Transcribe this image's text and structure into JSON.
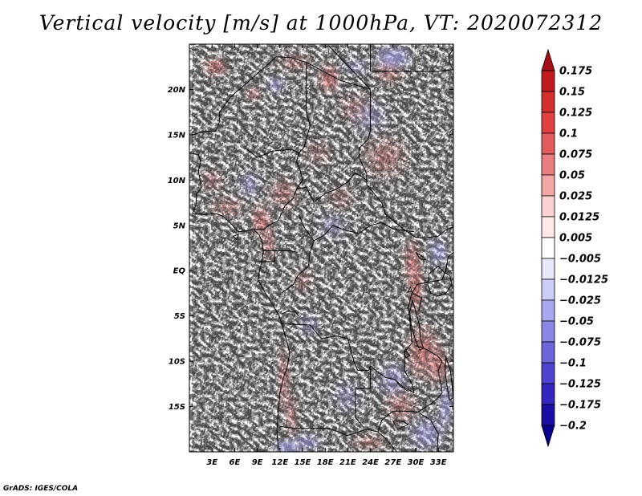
{
  "title": "Vertical velocity [m/s] at 1000hPa, VT: 2020072312",
  "credit": "GrADS: IGES/COLA",
  "map": {
    "lon_range": [
      0,
      35
    ],
    "lat_range": [
      -20,
      25
    ],
    "lat_ticks": [
      {
        "value": 20,
        "label": "20N"
      },
      {
        "value": 15,
        "label": "15N"
      },
      {
        "value": 10,
        "label": "10N"
      },
      {
        "value": 5,
        "label": "5N"
      },
      {
        "value": 0,
        "label": "EQ"
      },
      {
        "value": -5,
        "label": "5S"
      },
      {
        "value": -10,
        "label": "10S"
      },
      {
        "value": -15,
        "label": "15S"
      }
    ],
    "lon_ticks": [
      {
        "value": 3,
        "label": "3E"
      },
      {
        "value": 6,
        "label": "6E"
      },
      {
        "value": 9,
        "label": "9E"
      },
      {
        "value": 12,
        "label": "12E"
      },
      {
        "value": 15,
        "label": "15E"
      },
      {
        "value": 18,
        "label": "18E"
      },
      {
        "value": 21,
        "label": "21E"
      },
      {
        "value": 24,
        "label": "24E"
      },
      {
        "value": 27,
        "label": "27E"
      },
      {
        "value": 30,
        "label": "30E"
      },
      {
        "value": 33,
        "label": "33E"
      }
    ]
  },
  "colorbar": {
    "levels": [
      "0.175",
      "0.15",
      "0.125",
      "0.1",
      "0.075",
      "0.05",
      "0.025",
      "0.0125",
      "0.005",
      "-0.005",
      "-0.0125",
      "-0.025",
      "-0.05",
      "-0.075",
      "-0.1",
      "-0.125",
      "-0.175",
      "-0.2"
    ],
    "colors": [
      "#a50f15",
      "#c11b20",
      "#d42f2f",
      "#e04040",
      "#e35c5c",
      "#ea7e7e",
      "#f4a6a6",
      "#fad0d0",
      "#fde9e9",
      "#ffffff",
      "#e8e8fb",
      "#ccccf6",
      "#a9a7ef",
      "#8a86e6",
      "#6c66dc",
      "#4c44cf",
      "#3325bd",
      "#1a0fa3",
      "#0a0090"
    ]
  },
  "features": {
    "positive": [
      [
        3.5,
        22.5,
        1.6,
        1.0,
        0.9
      ],
      [
        18.5,
        21.2,
        1.4,
        1.6,
        0.9
      ],
      [
        8.5,
        19.5,
        1.2,
        0.9,
        0.6
      ],
      [
        14.0,
        23.0,
        2.5,
        1.2,
        0.4
      ],
      [
        26.0,
        12.5,
        3.0,
        2.5,
        0.45
      ],
      [
        22.0,
        18.0,
        2.5,
        1.8,
        0.35
      ],
      [
        9.5,
        5.5,
        1.4,
        1.8,
        0.8
      ],
      [
        10.5,
        3.0,
        1.0,
        2.0,
        0.6
      ],
      [
        12.5,
        8.5,
        2.0,
        2.0,
        0.45
      ],
      [
        30.0,
        -2.0,
        1.0,
        3.0,
        0.9
      ],
      [
        29.5,
        1.0,
        1.2,
        2.5,
        0.7
      ],
      [
        31.0,
        -9.0,
        2.2,
        3.0,
        0.75
      ],
      [
        33.0,
        -10.5,
        1.4,
        2.2,
        0.7
      ],
      [
        12.5,
        -12.0,
        0.9,
        4.0,
        0.6
      ],
      [
        13.5,
        -16.0,
        0.9,
        2.5,
        0.55
      ],
      [
        3.0,
        10.0,
        1.6,
        1.4,
        0.4
      ],
      [
        28.0,
        -15.0,
        2.2,
        2.0,
        0.5
      ],
      [
        5.0,
        7.0,
        2.5,
        1.2,
        0.45
      ],
      [
        20.0,
        8.0,
        2.0,
        1.5,
        0.3
      ],
      [
        17.0,
        13.0,
        2.0,
        1.5,
        0.3
      ],
      [
        26.5,
        22.0,
        2.0,
        1.5,
        0.5
      ],
      [
        24.0,
        -19.0,
        2.5,
        1.0,
        0.45
      ],
      [
        15.0,
        -1.0,
        1.5,
        1.5,
        0.35
      ]
    ],
    "negative": [
      [
        11.5,
        20.5,
        1.2,
        1.0,
        0.6
      ],
      [
        27.0,
        23.5,
        2.5,
        1.3,
        0.7
      ],
      [
        33.0,
        2.0,
        1.4,
        1.6,
        0.55
      ],
      [
        34.0,
        -15.0,
        1.0,
        2.5,
        0.6
      ],
      [
        13.0,
        -19.5,
        1.8,
        0.9,
        0.8
      ],
      [
        15.5,
        -19.0,
        2.0,
        1.0,
        0.55
      ],
      [
        31.5,
        -18.0,
        2.5,
        2.0,
        0.5
      ],
      [
        8.0,
        9.5,
        1.5,
        1.5,
        0.45
      ],
      [
        19.0,
        5.0,
        2.0,
        1.5,
        0.35
      ],
      [
        24.0,
        17.0,
        2.5,
        2.0,
        0.3
      ],
      [
        22.0,
        22.5,
        2.0,
        1.0,
        0.35
      ],
      [
        16.0,
        -6.0,
        1.5,
        1.5,
        0.3
      ],
      [
        27.0,
        -12.0,
        2.0,
        2.0,
        0.45
      ],
      [
        21.0,
        -14.0,
        2.0,
        2.0,
        0.3
      ]
    ]
  },
  "borders": {
    "coast": [
      [
        [
          0,
          13
        ],
        [
          1.2,
          12.8
        ],
        [
          1.5,
          12
        ],
        [
          1.2,
          11
        ],
        [
          1.4,
          10
        ],
        [
          1.6,
          9.2
        ],
        [
          0.9,
          8.4
        ],
        [
          0.9,
          7.3
        ],
        [
          0.4,
          6.3
        ],
        [
          2,
          6.2
        ],
        [
          3.5,
          6.3
        ],
        [
          4.5,
          6
        ],
        [
          5.5,
          5.2
        ],
        [
          6.5,
          4.3
        ],
        [
          7.6,
          4.4
        ],
        [
          8.5,
          4.6
        ],
        [
          9.3,
          3.9
        ],
        [
          9.7,
          3
        ],
        [
          9.8,
          2
        ],
        [
          9.6,
          1
        ],
        [
          9.3,
          0
        ],
        [
          9.1,
          -1
        ],
        [
          10.1,
          -2.5
        ],
        [
          11,
          -3.7
        ],
        [
          11.9,
          -5
        ],
        [
          12.3,
          -6
        ],
        [
          12.8,
          -7.5
        ],
        [
          13.3,
          -9
        ],
        [
          13,
          -10.5
        ],
        [
          12.4,
          -12
        ],
        [
          12,
          -13.5
        ],
        [
          11.8,
          -15.5
        ],
        [
          11.6,
          -17.5
        ],
        [
          11.8,
          -20
        ]
      ],
      [
        [
          35,
          24.5
        ],
        [
          34.4,
          23.7
        ],
        [
          34.6,
          22.7
        ],
        [
          35,
          22.2
        ]
      ]
    ],
    "borders": [
      [
        [
          7.5,
          13.5
        ],
        [
          9,
          12.5
        ],
        [
          11,
          13.2
        ],
        [
          13.5,
          13.4
        ],
        [
          14.5,
          13
        ],
        [
          14.2,
          12
        ],
        [
          14.7,
          11
        ],
        [
          15,
          10
        ],
        [
          14.2,
          9
        ],
        [
          13.8,
          8
        ],
        [
          12.7,
          7.2
        ],
        [
          12.2,
          6.3
        ],
        [
          11.8,
          5.5
        ],
        [
          10.5,
          5
        ],
        [
          9.8,
          4.5
        ],
        [
          8.6,
          4.6
        ]
      ],
      [
        [
          0.5,
          15
        ],
        [
          2,
          15.4
        ],
        [
          3.5,
          15.4
        ],
        [
          4,
          16.5
        ],
        [
          4,
          17.5
        ],
        [
          5.5,
          19.2
        ],
        [
          8,
          21
        ],
        [
          11.5,
          23.6
        ],
        [
          13.5,
          23.5
        ],
        [
          15.5,
          23
        ]
      ],
      [
        [
          15.5,
          23
        ],
        [
          15.5,
          20.5
        ],
        [
          15.5,
          17.5
        ],
        [
          16,
          16
        ],
        [
          15.2,
          13.6
        ],
        [
          14.5,
          13
        ]
      ],
      [
        [
          15.5,
          23
        ],
        [
          20,
          21
        ],
        [
          24,
          20
        ],
        [
          24,
          19.5
        ],
        [
          24,
          15.5
        ],
        [
          23.7,
          14.5
        ],
        [
          22.5,
          13.5
        ],
        [
          22.5,
          12.5
        ],
        [
          23.5,
          10.7
        ],
        [
          23.5,
          9.5
        ]
      ],
      [
        [
          18.5,
          24.8
        ],
        [
          24,
          20
        ]
      ],
      [
        [
          24,
          24.8
        ],
        [
          24,
          22
        ],
        [
          25,
          22
        ],
        [
          33,
          22
        ],
        [
          35,
          22.2
        ]
      ],
      [
        [
          14.2,
          9
        ],
        [
          15.5,
          9.2
        ],
        [
          16.5,
          7.6
        ],
        [
          18,
          8.5
        ],
        [
          19.5,
          9
        ],
        [
          21,
          9.8
        ],
        [
          22,
          10.8
        ],
        [
          23.5,
          10
        ]
      ],
      [
        [
          23.5,
          9.5
        ],
        [
          24.5,
          8.5
        ],
        [
          25.5,
          7.5
        ],
        [
          26,
          6.2
        ],
        [
          27.5,
          5.2
        ],
        [
          28.5,
          4.5
        ],
        [
          30,
          3.7
        ],
        [
          31,
          3.6
        ],
        [
          33,
          3.8
        ],
        [
          34,
          4.5
        ],
        [
          35,
          4.8
        ]
      ],
      [
        [
          14.5,
          6.2
        ],
        [
          15.2,
          4.8
        ],
        [
          16.5,
          3.3
        ],
        [
          18,
          4
        ],
        [
          19,
          5
        ],
        [
          20.5,
          4.5
        ],
        [
          22.5,
          4.1
        ],
        [
          24,
          5
        ],
        [
          25.5,
          5.3
        ],
        [
          27,
          4.6
        ]
      ],
      [
        [
          16.5,
          3.3
        ],
        [
          16,
          2
        ],
        [
          15.8,
          0.5
        ],
        [
          14.4,
          -0.5
        ],
        [
          13.8,
          -1.5
        ],
        [
          13,
          -2
        ],
        [
          12.2,
          -2.5
        ]
      ],
      [
        [
          9.8,
          2.2
        ],
        [
          11.3,
          2.2
        ],
        [
          12.5,
          2.2
        ],
        [
          13.3,
          2.2
        ],
        [
          14.4,
          2
        ]
      ],
      [
        [
          11.3,
          2.2
        ],
        [
          11.3,
          1
        ],
        [
          9.3,
          1
        ]
      ],
      [
        [
          27,
          4.6
        ],
        [
          29.8,
          4.3
        ]
      ],
      [
        [
          30.2,
          -1.5
        ],
        [
          29.5,
          -2.5
        ],
        [
          29,
          -4
        ],
        [
          29.3,
          -6
        ],
        [
          29.5,
          -8
        ],
        [
          28.5,
          -9
        ],
        [
          28.5,
          -11
        ],
        [
          29.5,
          -12.5
        ],
        [
          29.8,
          -13.5
        ]
      ],
      [
        [
          30.2,
          -1.5
        ],
        [
          33.5,
          -1
        ],
        [
          34,
          0
        ],
        [
          34.3,
          1.5
        ],
        [
          35,
          2
        ]
      ],
      [
        [
          29.5,
          -2.5
        ],
        [
          30.8,
          -3
        ],
        [
          30.4,
          -4.5
        ]
      ],
      [
        [
          12.2,
          -5.8
        ],
        [
          13,
          -5.9
        ],
        [
          16,
          -6
        ],
        [
          17.5,
          -7.5
        ],
        [
          19.5,
          -7.2
        ],
        [
          21,
          -7.5
        ],
        [
          21.8,
          -10
        ],
        [
          22.3,
          -11
        ],
        [
          23.8,
          -11
        ],
        [
          24,
          -10.5
        ]
      ],
      [
        [
          24,
          -10.5
        ],
        [
          25,
          -11.2
        ],
        [
          26,
          -11.8
        ],
        [
          27.2,
          -12
        ],
        [
          28.3,
          -12.8
        ],
        [
          29.8,
          -13.5
        ]
      ],
      [
        [
          12,
          -17.2
        ],
        [
          14,
          -17.4
        ],
        [
          18.5,
          -17.4
        ],
        [
          21,
          -18.2
        ],
        [
          23.5,
          -17.5
        ],
        [
          25,
          -17.8
        ]
      ],
      [
        [
          22,
          -13
        ],
        [
          22,
          -15
        ],
        [
          22,
          -16.2
        ],
        [
          23.2,
          -17.4
        ]
      ],
      [
        [
          22,
          -13
        ],
        [
          24,
          -13
        ],
        [
          24,
          -10.5
        ]
      ],
      [
        [
          25,
          -17.8
        ],
        [
          25.5,
          -16.5
        ],
        [
          27,
          -15.5
        ],
        [
          28.5,
          -15.5
        ],
        [
          30.3,
          -15.6
        ]
      ],
      [
        [
          30.3,
          -15.6
        ],
        [
          32,
          -14.7
        ],
        [
          33,
          -14
        ],
        [
          33.5,
          -13.5
        ]
      ],
      [
        [
          33.5,
          -13.5
        ],
        [
          33,
          -11
        ],
        [
          33.5,
          -10
        ],
        [
          33,
          -9.5
        ]
      ],
      [
        [
          33,
          -9.5
        ],
        [
          31.5,
          -8.7
        ],
        [
          30,
          -8.3
        ]
      ],
      [
        [
          27.2,
          -12
        ],
        [
          28,
          -12.8
        ],
        [
          29,
          -13.3
        ]
      ],
      [
        [
          30.3,
          -15.6
        ],
        [
          32,
          -16.5
        ],
        [
          33,
          -18
        ],
        [
          32.8,
          -20
        ]
      ],
      [
        [
          25,
          -17.8
        ],
        [
          26,
          -18.5
        ],
        [
          27.5,
          -20
        ]
      ],
      [
        [
          12.2,
          -4.8
        ],
        [
          13,
          -4.5
        ],
        [
          14,
          -4.5
        ],
        [
          14.5,
          -5
        ]
      ]
    ],
    "lakes": [
      [
        [
          33,
          0.5
        ],
        [
          33.8,
          -0.2
        ],
        [
          34.5,
          -0.5
        ],
        [
          34.8,
          -1.5
        ],
        [
          34,
          -2.5
        ],
        [
          33,
          -2.8
        ],
        [
          32,
          -2.5
        ],
        [
          31.6,
          -1.5
        ],
        [
          31.8,
          -0.3
        ],
        [
          33,
          0.5
        ]
      ],
      [
        [
          29.6,
          -3.3
        ],
        [
          30,
          -4.5
        ],
        [
          30.5,
          -6
        ],
        [
          30.6,
          -7.5
        ],
        [
          31,
          -8.5
        ],
        [
          30.6,
          -8.8
        ],
        [
          30,
          -7.8
        ],
        [
          29.4,
          -6
        ],
        [
          29.2,
          -4.5
        ],
        [
          29.6,
          -3.3
        ]
      ],
      [
        [
          34,
          -9.5
        ],
        [
          34.6,
          -11
        ],
        [
          34.8,
          -12.5
        ],
        [
          35,
          -14
        ],
        [
          34.5,
          -14.3
        ],
        [
          34.1,
          -12.5
        ],
        [
          33.9,
          -11
        ],
        [
          34,
          -9.5
        ]
      ],
      [
        [
          29.3,
          -1.8
        ],
        [
          29.5,
          -2.3
        ],
        [
          29,
          -2.3
        ],
        [
          29.3,
          -1.8
        ]
      ],
      [
        [
          30,
          2
        ],
        [
          31,
          1.5
        ],
        [
          31.3,
          1.2
        ],
        [
          30.6,
          1.3
        ],
        [
          30,
          2
        ]
      ],
      [
        [
          28.6,
          -8.7
        ],
        [
          29.2,
          -9.4
        ],
        [
          28.7,
          -9.6
        ],
        [
          28.5,
          -9.1
        ],
        [
          28.6,
          -8.7
        ]
      ],
      [
        [
          27,
          -16.6
        ],
        [
          28.3,
          -16.6
        ],
        [
          29,
          -17
        ],
        [
          27.6,
          -17.5
        ],
        [
          27,
          -16.6
        ]
      ],
      [
        [
          5.8,
          3.8
        ],
        [
          6.3,
          3.4
        ],
        [
          6.5,
          4
        ],
        [
          5.8,
          3.8
        ]
      ]
    ]
  }
}
